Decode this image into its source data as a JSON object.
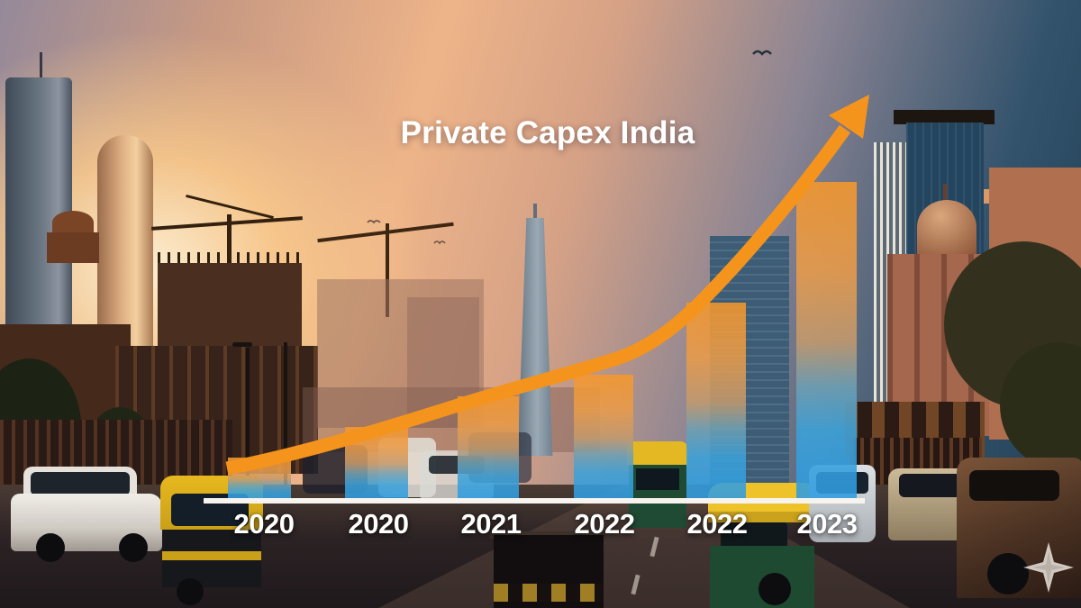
{
  "title": "Private Capex India",
  "chart_data": {
    "type": "bar",
    "title": "Private Capex India",
    "categories": [
      "2020",
      "2020",
      "2021",
      "2022",
      "2022",
      "2023"
    ],
    "values": [
      48,
      82,
      116,
      140,
      220,
      354
    ],
    "values_note": "no numeric y-axis is shown; values are relative bar heights in pixels read from the image (baseline y=556)",
    "xlabel": "",
    "ylabel": "",
    "grid": false,
    "legend": false,
    "trend_arrow": {
      "type": "line",
      "shape": "rising curve ending in an up-right arrowhead",
      "color": "#f5941d"
    },
    "bar_gradient": {
      "top": "#f6982c",
      "middle": "#c49a6d",
      "bottom": "#2f9cd9",
      "opacity": 0.88
    },
    "axis_line_color": "#f7f4ef",
    "label_color": "#ffffff"
  },
  "scene": {
    "description_elements": {
      "sky": "sunset gradient, mauve top-left, orange sun glow left, deep blue top-right",
      "left": "skyscrapers, chhatri pavilion, construction cranes, building under construction",
      "center": "hazy mid-rise skyline, slender tapered skyscraper",
      "right": "glass towers, striped building, domed heritage building, classical building, large tree",
      "street": "busy road with white SUV, auto rickshaws, cars, crowds on both sidewalks, median"
    },
    "birds_count": 3
  },
  "watermark": {
    "icon": "four-point-star"
  }
}
